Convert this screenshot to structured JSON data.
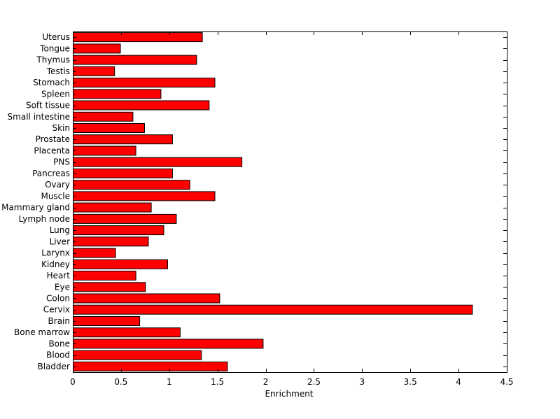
{
  "chart_data": {
    "type": "bar",
    "orientation": "horizontal",
    "xlabel": "Enrichment",
    "ylabel": "",
    "title": "",
    "xlim": [
      0,
      4.5
    ],
    "xticks": [
      0,
      0.5,
      1,
      1.5,
      2,
      2.5,
      3,
      3.5,
      4,
      4.5
    ],
    "xtick_labels": [
      "0",
      "0.5",
      "1",
      "1.5",
      "2",
      "2.5",
      "3",
      "3.5",
      "4",
      "4.5"
    ],
    "grid": false,
    "legend": "none",
    "bar_color": "#ff0000",
    "bar_edge_color": "#000000",
    "categories": [
      "Bladder",
      "Blood",
      "Bone",
      "Bone marrow",
      "Brain",
      "Cervix",
      "Colon",
      "Eye",
      "Heart",
      "Kidney",
      "Larynx",
      "Liver",
      "Lung",
      "Lymph node",
      "Mammary gland",
      "Muscle",
      "Ovary",
      "Pancreas",
      "PNS",
      "Placenta",
      "Prostate",
      "Skin",
      "Small intestine",
      "Soft tissue",
      "Spleen",
      "Stomach",
      "Testis",
      "Thymus",
      "Tongue",
      "Uterus"
    ],
    "values": [
      1.6,
      1.33,
      1.97,
      1.11,
      0.69,
      4.14,
      1.52,
      0.75,
      0.65,
      0.98,
      0.44,
      0.78,
      0.94,
      1.07,
      0.81,
      1.47,
      1.21,
      1.03,
      1.75,
      0.65,
      1.03,
      0.74,
      0.62,
      1.41,
      0.91,
      1.47,
      0.43,
      1.28,
      0.49,
      1.34
    ]
  }
}
